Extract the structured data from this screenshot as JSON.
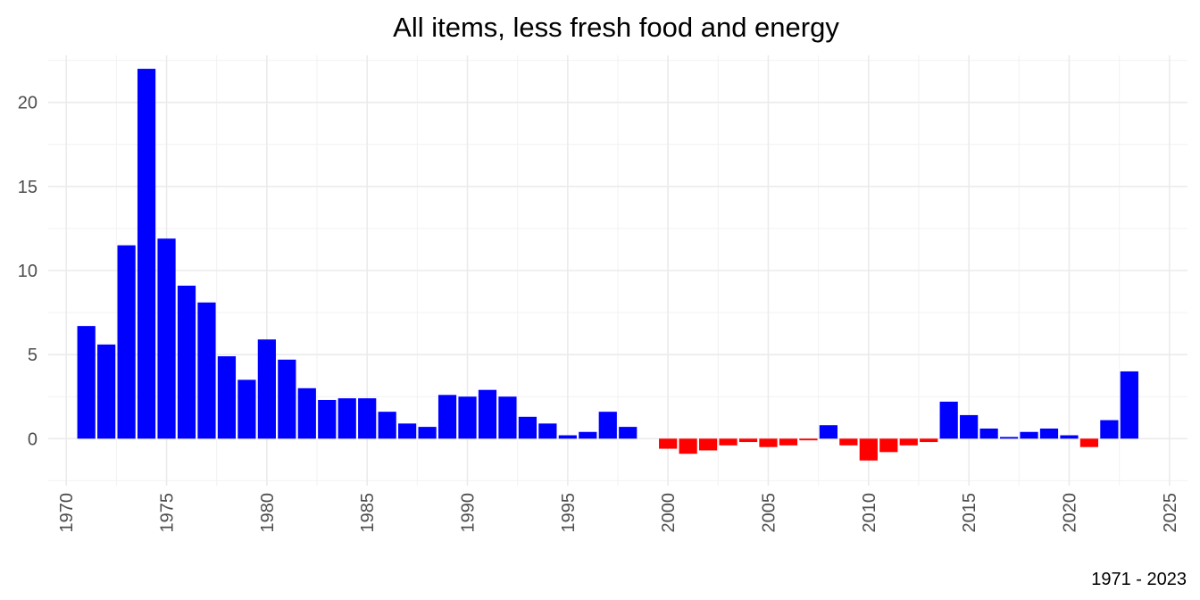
{
  "chart_data": {
    "type": "bar",
    "title": "All items, less fresh food and energy",
    "caption": "1971 - 2023",
    "xlabel": "",
    "ylabel": "",
    "x": [
      1971,
      1972,
      1973,
      1974,
      1975,
      1976,
      1977,
      1978,
      1979,
      1980,
      1981,
      1982,
      1983,
      1984,
      1985,
      1986,
      1987,
      1988,
      1989,
      1990,
      1991,
      1992,
      1993,
      1994,
      1995,
      1996,
      1997,
      1998,
      1999,
      2000,
      2001,
      2002,
      2003,
      2004,
      2005,
      2006,
      2007,
      2008,
      2009,
      2010,
      2011,
      2012,
      2013,
      2014,
      2015,
      2016,
      2017,
      2018,
      2019,
      2020,
      2021,
      2022,
      2023
    ],
    "values": [
      6.7,
      5.6,
      11.5,
      22.0,
      11.9,
      9.1,
      8.1,
      4.9,
      3.5,
      5.9,
      4.7,
      3.0,
      2.3,
      2.4,
      2.4,
      1.6,
      0.9,
      0.7,
      2.6,
      2.5,
      2.9,
      2.5,
      1.3,
      0.9,
      0.2,
      0.4,
      1.6,
      0.7,
      0.0,
      -0.6,
      -0.9,
      -0.7,
      -0.4,
      -0.2,
      -0.5,
      -0.4,
      -0.1,
      0.8,
      -0.4,
      -1.3,
      -0.8,
      -0.4,
      -0.2,
      2.2,
      1.4,
      0.6,
      0.1,
      0.4,
      0.6,
      0.2,
      -0.5,
      1.1,
      4.0
    ],
    "xlim": [
      1969.1,
      2025.9
    ],
    "ylim": [
      -2.8,
      22.8
    ],
    "x_ticks": [
      1970,
      1975,
      1980,
      1985,
      1990,
      1995,
      2000,
      2005,
      2010,
      2015,
      2020,
      2025
    ],
    "y_ticks": [
      0,
      5,
      10,
      15,
      20
    ],
    "grid": true,
    "legend": "none",
    "colors": {
      "positive": "#0000ff",
      "negative": "#ff0000"
    }
  }
}
